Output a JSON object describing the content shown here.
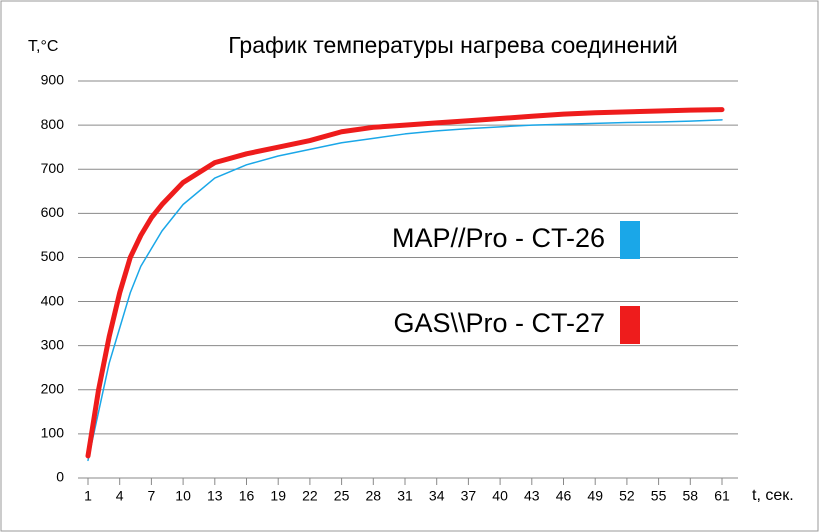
{
  "chart_data": {
    "type": "line",
    "title": "График температуры нагрева соединений",
    "y_label": "T,°C",
    "x_label": "t, сек.",
    "x": [
      1,
      2,
      3,
      4,
      5,
      6,
      7,
      8,
      10,
      13,
      16,
      19,
      22,
      25,
      28,
      31,
      34,
      37,
      40,
      43,
      46,
      49,
      52,
      55,
      58,
      61
    ],
    "series": [
      {
        "name": "MAP//Pro - CT-26",
        "color": "#1aa7e8",
        "width": 1.5,
        "values": [
          40,
          150,
          260,
          340,
          420,
          480,
          520,
          560,
          620,
          680,
          710,
          730,
          745,
          760,
          770,
          780,
          787,
          792,
          796,
          800,
          802,
          804,
          806,
          807,
          809,
          812
        ]
      },
      {
        "name": "GAS\\\\Pro - CT-27",
        "color": "#ee1c1c",
        "width": 5,
        "values": [
          50,
          200,
          320,
          420,
          500,
          550,
          590,
          620,
          670,
          715,
          735,
          750,
          765,
          785,
          795,
          800,
          805,
          810,
          815,
          820,
          825,
          828,
          830,
          832,
          834,
          835
        ]
      }
    ],
    "xlim": [
      1,
      61
    ],
    "xticks": [
      1,
      4,
      7,
      10,
      13,
      16,
      19,
      22,
      25,
      28,
      31,
      34,
      37,
      40,
      43,
      46,
      49,
      52,
      55,
      58,
      61
    ],
    "ylim": [
      0,
      900
    ],
    "yticks": [
      0,
      100,
      200,
      300,
      400,
      500,
      600,
      700,
      800,
      900
    ],
    "grid": true
  }
}
